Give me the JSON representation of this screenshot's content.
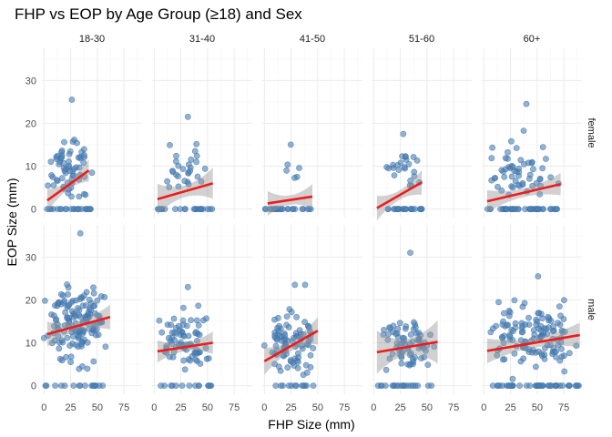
{
  "chart_data": {
    "type": "scatter",
    "title": "FHP vs EOP by Age Group (≥18) and Sex",
    "xlabel": "FHP Size (mm)",
    "ylabel": "EOP Size (mm)",
    "xlim": [
      -2,
      92
    ],
    "ylim": [
      -2,
      37.5
    ],
    "x_ticks": [
      0,
      25,
      50,
      75
    ],
    "y_ticks": [
      0,
      10,
      20,
      30
    ],
    "facet_cols": [
      "18-30",
      "31-40",
      "41-50",
      "51-60",
      "60+"
    ],
    "facet_rows": [
      "female",
      "male"
    ],
    "grid": true,
    "point_color": "#4a7fb5",
    "fit_color": "#ee1c1c",
    "band_color": "#999999",
    "panels": [
      {
        "row": "female",
        "col": "18-30",
        "n": 85,
        "zeros": 22,
        "x_range": [
          3,
          45
        ],
        "y_mean": 9.5,
        "y_sd": 3.2,
        "y_max": 25.5,
        "fit": [
          [
            3,
            2.0
          ],
          [
            42,
            9.0
          ]
        ],
        "ci": 1.8
      },
      {
        "row": "female",
        "col": "31-40",
        "n": 50,
        "zeros": 22,
        "x_range": [
          3,
          55
        ],
        "y_mean": 8.5,
        "y_sd": 3.0,
        "y_max": 21.5,
        "fit": [
          [
            3,
            2.3
          ],
          [
            55,
            6.0
          ]
        ],
        "ci": 2.5
      },
      {
        "row": "female",
        "col": "41-50",
        "n": 30,
        "zeros": 25,
        "x_range": [
          0,
          45
        ],
        "y_mean": 9.5,
        "y_sd": 2.5,
        "y_max": 15.0,
        "fit": [
          [
            3,
            1.3
          ],
          [
            45,
            2.9
          ]
        ],
        "ci": 2.0
      },
      {
        "row": "female",
        "col": "51-60",
        "n": 45,
        "zeros": 22,
        "x_range": [
          3,
          48
        ],
        "y_mean": 9.0,
        "y_sd": 2.6,
        "y_max": 17.5,
        "fit": [
          [
            3,
            0.2
          ],
          [
            45,
            6.2
          ]
        ],
        "ci": 2.0
      },
      {
        "row": "female",
        "col": "60+",
        "n": 95,
        "zeros": 40,
        "x_range": [
          3,
          70
        ],
        "y_mean": 9.5,
        "y_sd": 3.0,
        "y_max": 24.5,
        "fit": [
          [
            3,
            1.8
          ],
          [
            72,
            5.8
          ]
        ],
        "ci": 1.8
      },
      {
        "row": "male",
        "col": "18-30",
        "n": 160,
        "zeros": 16,
        "x_range": [
          0,
          62
        ],
        "y_mean": 14.0,
        "y_sd": 4.5,
        "y_max": 35.5,
        "fit": [
          [
            3,
            12.0
          ],
          [
            62,
            16.0
          ]
        ],
        "ci": 2.0
      },
      {
        "row": "male",
        "col": "31-40",
        "n": 90,
        "zeros": 14,
        "x_range": [
          3,
          55
        ],
        "y_mean": 10.0,
        "y_sd": 3.5,
        "y_max": 23.0,
        "fit": [
          [
            3,
            8.0
          ],
          [
            55,
            10.0
          ]
        ],
        "ci": 1.8
      },
      {
        "row": "male",
        "col": "41-50",
        "n": 100,
        "zeros": 12,
        "x_range": [
          0,
          52
        ],
        "y_mean": 10.0,
        "y_sd": 3.8,
        "y_max": 23.5,
        "fit": [
          [
            0,
            5.7
          ],
          [
            50,
            12.8
          ]
        ],
        "ci": 2.2
      },
      {
        "row": "male",
        "col": "51-60",
        "n": 90,
        "zeros": 20,
        "x_range": [
          3,
          60
        ],
        "y_mean": 10.0,
        "y_sd": 3.8,
        "y_max": 31.0,
        "fit": [
          [
            3,
            7.8
          ],
          [
            60,
            10.2
          ]
        ],
        "ci": 3.5
      },
      {
        "row": "male",
        "col": "60+",
        "n": 170,
        "zeros": 42,
        "x_range": [
          3,
          90
        ],
        "y_mean": 11.5,
        "y_sd": 4.0,
        "y_max": 25.5,
        "fit": [
          [
            3,
            8.1
          ],
          [
            90,
            11.8
          ]
        ],
        "ci": 2.0
      }
    ]
  }
}
